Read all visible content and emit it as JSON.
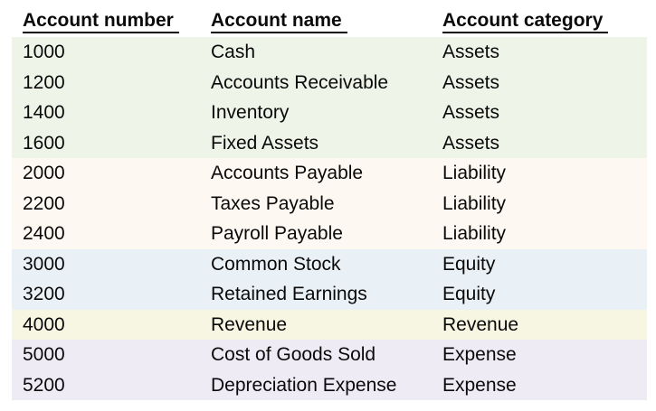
{
  "table": {
    "columns": [
      {
        "id": "number",
        "label": "Account number"
      },
      {
        "id": "name",
        "label": "Account name"
      },
      {
        "id": "category",
        "label": "Account category"
      }
    ],
    "rows": [
      {
        "number": "1000",
        "name": "Cash",
        "category": "Assets"
      },
      {
        "number": "1200",
        "name": "Accounts Receivable",
        "category": "Assets"
      },
      {
        "number": "1400",
        "name": "Inventory",
        "category": "Assets"
      },
      {
        "number": "1600",
        "name": "Fixed Assets",
        "category": "Assets"
      },
      {
        "number": "2000",
        "name": "Accounts Payable",
        "category": "Liability"
      },
      {
        "number": "2200",
        "name": "Taxes Payable",
        "category": "Liability"
      },
      {
        "number": "2400",
        "name": "Payroll Payable",
        "category": "Liability"
      },
      {
        "number": "3000",
        "name": "Common Stock",
        "category": "Equity"
      },
      {
        "number": "3200",
        "name": "Retained Earnings",
        "category": "Equity"
      },
      {
        "number": "4000",
        "name": "Revenue",
        "category": "Revenue"
      },
      {
        "number": "5000",
        "name": "Cost of Goods Sold",
        "category": "Expense"
      },
      {
        "number": "5200",
        "name": "Depreciation Expense",
        "category": "Expense"
      }
    ]
  },
  "category_colors": {
    "Assets": "#eff4e8",
    "Liability": "#fdf8f1",
    "Equity": "#eaf1f6",
    "Revenue": "#f6f6e2",
    "Expense": "#eeebf5"
  },
  "text_color": "#0a0a0a",
  "chart_data": {
    "type": "table",
    "columns": [
      "Account number",
      "Account name",
      "Account category"
    ],
    "rows": [
      [
        "1000",
        "Cash",
        "Assets"
      ],
      [
        "1200",
        "Accounts Receivable",
        "Assets"
      ],
      [
        "1400",
        "Inventory",
        "Assets"
      ],
      [
        "1600",
        "Fixed Assets",
        "Assets"
      ],
      [
        "2000",
        "Accounts Payable",
        "Liability"
      ],
      [
        "2200",
        "Taxes Payable",
        "Liability"
      ],
      [
        "2400",
        "Payroll Payable",
        "Liability"
      ],
      [
        "3000",
        "Common Stock",
        "Equity"
      ],
      [
        "3200",
        "Retained Earnings",
        "Equity"
      ],
      [
        "4000",
        "Revenue",
        "Revenue"
      ],
      [
        "5000",
        "Cost of Goods Sold",
        "Expense"
      ],
      [
        "5200",
        "Depreciation Expense",
        "Expense"
      ]
    ]
  }
}
